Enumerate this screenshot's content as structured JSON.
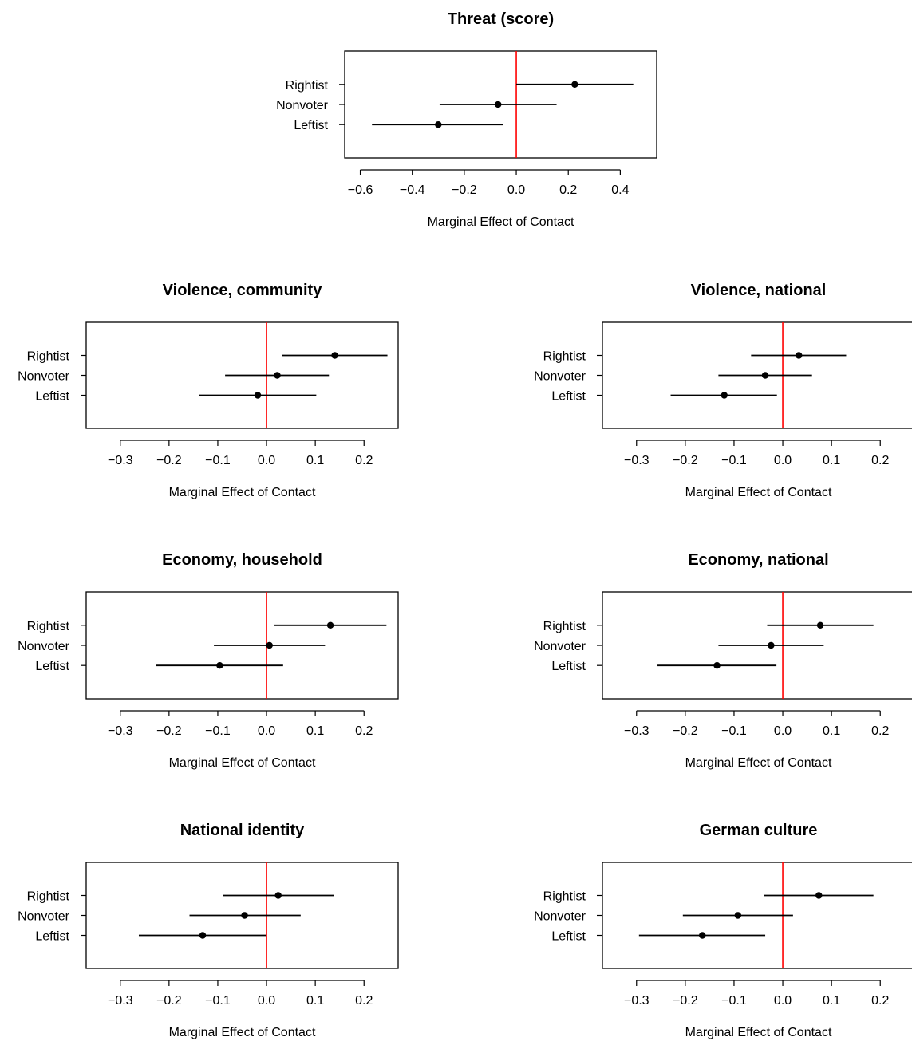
{
  "chart_data": [
    {
      "type": "forest",
      "title": "Threat (score)",
      "xlabel": "Marginal Effect of Contact",
      "categories": [
        "Rightist",
        "Nonvoter",
        "Leftist"
      ],
      "series": [
        {
          "values": [
            0.225,
            -0.07,
            -0.3
          ],
          "ci_low": [
            0.0,
            -0.295,
            -0.555
          ],
          "ci_high": [
            0.45,
            0.155,
            -0.05
          ]
        }
      ],
      "xticks": [
        "−0.6",
        "−0.4",
        "−0.2",
        "0.0",
        "0.2",
        "0.4"
      ],
      "xtick_values": [
        -0.6,
        -0.4,
        -0.2,
        0.0,
        0.2,
        0.4
      ],
      "xlim": [
        -0.66,
        0.54
      ],
      "reference_line": {
        "x": 0,
        "color": "#ff0000"
      }
    },
    {
      "type": "forest",
      "title": "Violence, community",
      "xlabel": "Marginal Effect of Contact",
      "categories": [
        "Rightist",
        "Nonvoter",
        "Leftist"
      ],
      "series": [
        {
          "values": [
            0.14,
            0.022,
            -0.018
          ],
          "ci_low": [
            0.032,
            -0.085,
            -0.138
          ],
          "ci_high": [
            0.248,
            0.128,
            0.102
          ]
        }
      ],
      "xticks": [
        "−0.3",
        "−0.2",
        "−0.1",
        "0.0",
        "0.1",
        "0.2"
      ],
      "xtick_values": [
        -0.3,
        -0.2,
        -0.1,
        0.0,
        0.1,
        0.2
      ],
      "xlim": [
        -0.37,
        0.27
      ],
      "reference_line": {
        "x": 0,
        "color": "#ff0000"
      }
    },
    {
      "type": "forest",
      "title": "Violence, national",
      "xlabel": "Marginal Effect of Contact",
      "categories": [
        "Rightist",
        "Nonvoter",
        "Leftist"
      ],
      "series": [
        {
          "values": [
            0.033,
            -0.036,
            -0.12
          ],
          "ci_low": [
            -0.065,
            -0.132,
            -0.23
          ],
          "ci_high": [
            0.13,
            0.06,
            -0.012
          ]
        }
      ],
      "xticks": [
        "−0.3",
        "−0.2",
        "−0.1",
        "0.0",
        "0.1",
        "0.2"
      ],
      "xtick_values": [
        -0.3,
        -0.2,
        -0.1,
        0.0,
        0.1,
        0.2
      ],
      "xlim": [
        -0.37,
        0.27
      ],
      "reference_line": {
        "x": 0,
        "color": "#ff0000"
      }
    },
    {
      "type": "forest",
      "title": "Economy, household",
      "xlabel": "Marginal Effect of Contact",
      "categories": [
        "Rightist",
        "Nonvoter",
        "Leftist"
      ],
      "series": [
        {
          "values": [
            0.131,
            0.006,
            -0.096
          ],
          "ci_low": [
            0.016,
            -0.108,
            -0.226
          ],
          "ci_high": [
            0.246,
            0.12,
            0.034
          ]
        }
      ],
      "xticks": [
        "−0.3",
        "−0.2",
        "−0.1",
        "0.0",
        "0.1",
        "0.2"
      ],
      "xtick_values": [
        -0.3,
        -0.2,
        -0.1,
        0.0,
        0.1,
        0.2
      ],
      "xlim": [
        -0.37,
        0.27
      ],
      "reference_line": {
        "x": 0,
        "color": "#ff0000"
      }
    },
    {
      "type": "forest",
      "title": "Economy, national",
      "xlabel": "Marginal Effect of Contact",
      "categories": [
        "Rightist",
        "Nonvoter",
        "Leftist"
      ],
      "series": [
        {
          "values": [
            0.077,
            -0.024,
            -0.135
          ],
          "ci_low": [
            -0.032,
            -0.132,
            -0.257
          ],
          "ci_high": [
            0.186,
            0.084,
            -0.013
          ]
        }
      ],
      "xticks": [
        "−0.3",
        "−0.2",
        "−0.1",
        "0.0",
        "0.1",
        "0.2"
      ],
      "xtick_values": [
        -0.3,
        -0.2,
        -0.1,
        0.0,
        0.1,
        0.2
      ],
      "xlim": [
        -0.37,
        0.27
      ],
      "reference_line": {
        "x": 0,
        "color": "#ff0000"
      }
    },
    {
      "type": "forest",
      "title": "National identity",
      "xlabel": "Marginal Effect of Contact",
      "categories": [
        "Rightist",
        "Nonvoter",
        "Leftist"
      ],
      "series": [
        {
          "values": [
            0.024,
            -0.045,
            -0.131
          ],
          "ci_low": [
            -0.089,
            -0.158,
            -0.262
          ],
          "ci_high": [
            0.138,
            0.07,
            0.0
          ]
        }
      ],
      "xticks": [
        "−0.3",
        "−0.2",
        "−0.1",
        "0.0",
        "0.1",
        "0.2"
      ],
      "xtick_values": [
        -0.3,
        -0.2,
        -0.1,
        0.0,
        0.1,
        0.2
      ],
      "xlim": [
        -0.37,
        0.27
      ],
      "reference_line": {
        "x": 0,
        "color": "#ff0000"
      }
    },
    {
      "type": "forest",
      "title": "German culture",
      "xlabel": "Marginal Effect of Contact",
      "categories": [
        "Rightist",
        "Nonvoter",
        "Leftist"
      ],
      "series": [
        {
          "values": [
            0.074,
            -0.092,
            -0.165
          ],
          "ci_low": [
            -0.038,
            -0.205,
            -0.295
          ],
          "ci_high": [
            0.186,
            0.021,
            -0.036
          ]
        }
      ],
      "xticks": [
        "−0.3",
        "−0.2",
        "−0.1",
        "0.0",
        "0.1",
        "0.2"
      ],
      "xtick_values": [
        -0.3,
        -0.2,
        -0.1,
        0.0,
        0.1,
        0.2
      ],
      "xlim": [
        -0.37,
        0.27
      ],
      "reference_line": {
        "x": 0,
        "color": "#ff0000"
      }
    }
  ]
}
